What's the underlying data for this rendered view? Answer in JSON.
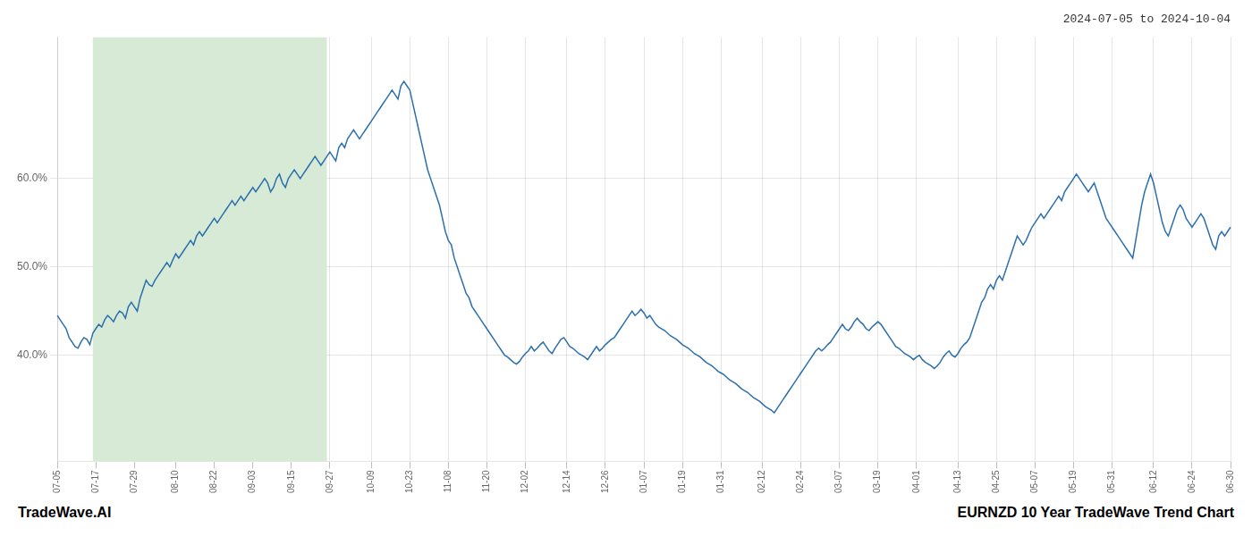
{
  "chart_data": {
    "type": "line",
    "title": "2024-07-05 to 2024-10-04",
    "annotations": [
      "TradeWave.AI",
      "EURNZD 10 Year TradeWave Trend Chart"
    ],
    "color": "#2c6fad",
    "grid": true,
    "ylim": [
      28,
      76
    ],
    "yticks": [
      {
        "value": 40.0,
        "label": "40.0%"
      },
      {
        "value": 50.0,
        "label": "50.0%"
      },
      {
        "value": 60.0,
        "label": "60.0%"
      }
    ],
    "highlight": {
      "from": 12,
      "to": 91,
      "color": "#d6ead6"
    },
    "categories": [
      "07-05",
      null,
      null,
      null,
      null,
      null,
      null,
      null,
      null,
      null,
      null,
      null,
      null,
      "07-17",
      null,
      null,
      null,
      null,
      null,
      null,
      null,
      null,
      null,
      null,
      null,
      null,
      "07-29",
      null,
      null,
      null,
      null,
      null,
      null,
      null,
      null,
      null,
      null,
      null,
      null,
      null,
      "08-10",
      null,
      null,
      null,
      null,
      null,
      null,
      null,
      null,
      null,
      null,
      null,
      null,
      "08-22",
      null,
      null,
      null,
      null,
      null,
      null,
      null,
      null,
      null,
      null,
      null,
      null,
      "09-03",
      null,
      null,
      null,
      null,
      null,
      null,
      null,
      null,
      null,
      null,
      null,
      null,
      "09-15",
      null,
      null,
      null,
      null,
      null,
      null,
      null,
      null,
      null,
      null,
      null,
      null,
      "09-27",
      null,
      null,
      null,
      null,
      null,
      null,
      null,
      null,
      null,
      null,
      null,
      null,
      null,
      "10-09",
      null,
      null,
      null,
      null,
      null,
      null,
      null,
      null,
      null,
      null,
      null,
      null,
      "10-23",
      null,
      null,
      null,
      null,
      null,
      null,
      null,
      null,
      null,
      null,
      null,
      null,
      "11-08",
      null,
      null,
      null,
      null,
      null,
      null,
      null,
      null,
      null,
      null,
      null,
      null,
      "11-20",
      null,
      null,
      null,
      null,
      null,
      null,
      null,
      null,
      null,
      null,
      null,
      null,
      "12-02",
      null,
      null,
      null,
      null,
      null,
      null,
      null,
      null,
      null,
      null,
      null,
      null,
      null,
      "12-14",
      null,
      null,
      null,
      null,
      null,
      null,
      null,
      null,
      null,
      null,
      null,
      null,
      "12-26",
      null,
      null,
      null,
      null,
      null,
      null,
      null,
      null,
      null,
      null,
      null,
      null,
      "01-07",
      null,
      null,
      null,
      null,
      null,
      null,
      null,
      null,
      null,
      null,
      null,
      null,
      "01-19",
      null,
      null,
      null,
      null,
      null,
      null,
      null,
      null,
      null,
      null,
      null,
      null,
      "01-31",
      null,
      null,
      null,
      null,
      null,
      null,
      null,
      null,
      null,
      null,
      null,
      null,
      null,
      "02-12",
      null,
      null,
      null,
      null,
      null,
      null,
      null,
      null,
      null,
      null,
      null,
      null,
      "02-24",
      null,
      null,
      null,
      null,
      null,
      null,
      null,
      null,
      null,
      null,
      null,
      null,
      "03-07",
      null,
      null,
      null,
      null,
      null,
      null,
      null,
      null,
      null,
      null,
      null,
      null,
      "03-19",
      null,
      null,
      null,
      null,
      null,
      null,
      null,
      null,
      null,
      null,
      null,
      null,
      "04-01",
      null,
      null,
      null,
      null,
      null,
      null,
      null,
      null,
      null,
      null,
      null,
      null,
      null,
      "04-13",
      null,
      null,
      null,
      null,
      null,
      null,
      null,
      null,
      null,
      null,
      null,
      null,
      "04-25",
      null,
      null,
      null,
      null,
      null,
      null,
      null,
      null,
      null,
      null,
      null,
      null,
      "05-07",
      null,
      null,
      null,
      null,
      null,
      null,
      null,
      null,
      null,
      null,
      null,
      null,
      "05-19",
      null,
      null,
      null,
      null,
      null,
      null,
      null,
      null,
      null,
      null,
      null,
      null,
      "05-31",
      null,
      null,
      null,
      null,
      null,
      null,
      null,
      null,
      null,
      null,
      null,
      null,
      null,
      "06-12",
      null,
      null,
      null,
      null,
      null,
      null,
      null,
      null,
      null,
      null,
      null,
      null,
      "06-24",
      null,
      null,
      null,
      null,
      null,
      null,
      null,
      null,
      null,
      null,
      null,
      null,
      "06-30"
    ],
    "values": [
      44.5,
      44.0,
      43.5,
      43.0,
      42.0,
      41.5,
      41.0,
      40.8,
      41.5,
      42.0,
      41.8,
      41.2,
      42.5,
      43.0,
      43.5,
      43.2,
      44.0,
      44.5,
      44.2,
      43.8,
      44.5,
      45.0,
      44.8,
      44.2,
      45.5,
      46.0,
      45.5,
      45.0,
      46.5,
      47.5,
      48.5,
      48.0,
      47.8,
      48.5,
      49.0,
      49.5,
      50.0,
      50.5,
      50.0,
      50.8,
      51.5,
      51.0,
      51.5,
      52.0,
      52.5,
      53.0,
      52.5,
      53.5,
      54.0,
      53.5,
      54.0,
      54.5,
      55.0,
      55.5,
      55.0,
      55.5,
      56.0,
      56.5,
      57.0,
      57.5,
      57.0,
      57.5,
      58.0,
      57.5,
      58.0,
      58.5,
      59.0,
      58.5,
      59.0,
      59.5,
      60.0,
      59.5,
      58.5,
      59.0,
      60.0,
      60.5,
      59.5,
      59.0,
      60.0,
      60.5,
      61.0,
      60.5,
      60.0,
      60.5,
      61.0,
      61.5,
      62.0,
      62.5,
      62.0,
      61.5,
      62.0,
      62.5,
      63.0,
      62.5,
      62.0,
      63.5,
      64.0,
      63.5,
      64.5,
      65.0,
      65.5,
      65.0,
      64.5,
      65.0,
      65.5,
      66.0,
      66.5,
      67.0,
      67.5,
      68.0,
      68.5,
      69.0,
      69.5,
      70.0,
      69.5,
      69.0,
      70.5,
      71.0,
      70.5,
      70.0,
      68.5,
      67.0,
      65.5,
      64.0,
      62.5,
      61.0,
      60.0,
      59.0,
      58.0,
      57.0,
      55.5,
      54.0,
      53.0,
      52.5,
      51.0,
      50.0,
      49.0,
      48.0,
      47.0,
      46.5,
      45.5,
      45.0,
      44.5,
      44.0,
      43.5,
      43.0,
      42.5,
      42.0,
      41.5,
      41.0,
      40.5,
      40.0,
      39.8,
      39.5,
      39.2,
      39.0,
      39.3,
      39.8,
      40.2,
      40.5,
      41.0,
      40.5,
      40.8,
      41.2,
      41.5,
      41.0,
      40.5,
      40.2,
      40.8,
      41.3,
      41.8,
      42.0,
      41.5,
      41.0,
      40.8,
      40.5,
      40.2,
      40.0,
      39.8,
      39.5,
      40.0,
      40.5,
      41.0,
      40.5,
      40.8,
      41.2,
      41.5,
      41.8,
      42.0,
      42.5,
      43.0,
      43.5,
      44.0,
      44.5,
      45.0,
      44.5,
      44.8,
      45.2,
      44.8,
      44.2,
      44.5,
      44.0,
      43.5,
      43.2,
      43.0,
      42.8,
      42.5,
      42.2,
      42.0,
      41.8,
      41.5,
      41.2,
      41.0,
      40.8,
      40.5,
      40.2,
      40.0,
      39.8,
      39.5,
      39.2,
      39.0,
      38.8,
      38.5,
      38.2,
      38.0,
      37.8,
      37.5,
      37.2,
      37.0,
      36.8,
      36.5,
      36.2,
      36.0,
      35.8,
      35.5,
      35.2,
      35.0,
      34.8,
      34.5,
      34.2,
      34.0,
      33.8,
      33.5,
      34.0,
      34.5,
      35.0,
      35.5,
      36.0,
      36.5,
      37.0,
      37.5,
      38.0,
      38.5,
      39.0,
      39.5,
      40.0,
      40.5,
      40.8,
      40.5,
      40.8,
      41.2,
      41.5,
      42.0,
      42.5,
      43.0,
      43.5,
      43.0,
      42.8,
      43.2,
      43.8,
      44.2,
      43.8,
      43.5,
      43.0,
      42.8,
      43.2,
      43.5,
      43.8,
      43.5,
      43.0,
      42.5,
      42.0,
      41.5,
      41.0,
      40.8,
      40.5,
      40.2,
      40.0,
      39.8,
      39.5,
      39.8,
      40.0,
      39.5,
      39.2,
      39.0,
      38.8,
      38.5,
      38.8,
      39.2,
      39.8,
      40.2,
      40.5,
      40.0,
      39.8,
      40.2,
      40.8,
      41.2,
      41.5,
      42.0,
      43.0,
      44.0,
      45.0,
      46.0,
      46.5,
      47.5,
      48.0,
      47.5,
      48.5,
      49.0,
      48.5,
      49.5,
      50.5,
      51.5,
      52.5,
      53.5,
      53.0,
      52.5,
      53.0,
      53.8,
      54.5,
      55.0,
      55.5,
      56.0,
      55.5,
      56.0,
      56.5,
      57.0,
      57.5,
      58.0,
      57.5,
      58.5,
      59.0,
      59.5,
      60.0,
      60.5,
      60.0,
      59.5,
      59.0,
      58.5,
      59.0,
      59.5,
      58.5,
      57.5,
      56.5,
      55.5,
      55.0,
      54.5,
      54.0,
      53.5,
      53.0,
      52.5,
      52.0,
      51.5,
      51.0,
      53.0,
      55.0,
      57.0,
      58.5,
      59.5,
      60.5,
      59.5,
      58.0,
      56.5,
      55.0,
      54.0,
      53.5,
      54.5,
      55.5,
      56.5,
      57.0,
      56.5,
      55.5,
      55.0,
      54.5,
      55.0,
      55.5,
      56.0,
      55.5,
      54.5,
      53.5,
      52.5,
      52.0,
      53.5,
      54.0,
      53.5,
      54.0,
      54.5
    ]
  }
}
